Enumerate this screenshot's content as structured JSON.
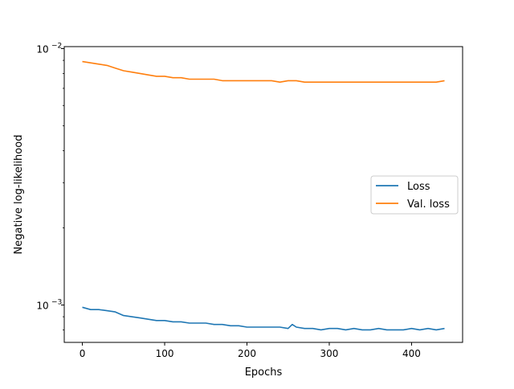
{
  "chart_data": {
    "type": "line",
    "title": "",
    "xlabel": "Epochs",
    "ylabel": "Negative log-likelihood",
    "xlim": [
      -22,
      462
    ],
    "ylim": [
      0.00072,
      0.0102
    ],
    "y_scale": "log",
    "grid": false,
    "legend_position": "center-right",
    "x_ticks": [
      {
        "value": 0,
        "label": "0"
      },
      {
        "value": 100,
        "label": "100"
      },
      {
        "value": 200,
        "label": "200"
      },
      {
        "value": 300,
        "label": "300"
      },
      {
        "value": 400,
        "label": "400"
      }
    ],
    "y_ticks": [
      {
        "value": 0.001,
        "base": "10",
        "exp": "−3"
      },
      {
        "value": 0.01,
        "base": "10",
        "exp": "−2"
      }
    ],
    "series": [
      {
        "name": "Loss",
        "color": "#1f77b4",
        "x": [
          0,
          10,
          20,
          30,
          40,
          50,
          60,
          70,
          80,
          90,
          100,
          110,
          120,
          130,
          140,
          150,
          160,
          170,
          180,
          190,
          200,
          210,
          220,
          230,
          240,
          250,
          255,
          260,
          270,
          280,
          290,
          300,
          310,
          320,
          330,
          340,
          350,
          360,
          370,
          380,
          390,
          400,
          410,
          420,
          430,
          440
        ],
        "y": [
          0.00098,
          0.00096,
          0.00096,
          0.00095,
          0.00094,
          0.00091,
          0.0009,
          0.00089,
          0.00088,
          0.00087,
          0.00087,
          0.00086,
          0.00086,
          0.00085,
          0.00085,
          0.00085,
          0.00084,
          0.00084,
          0.00083,
          0.00083,
          0.00082,
          0.00082,
          0.00082,
          0.00082,
          0.00082,
          0.00081,
          0.00084,
          0.00082,
          0.00081,
          0.00081,
          0.0008,
          0.00081,
          0.00081,
          0.0008,
          0.00081,
          0.0008,
          0.0008,
          0.00081,
          0.0008,
          0.0008,
          0.0008,
          0.00081,
          0.0008,
          0.00081,
          0.0008,
          0.00081
        ]
      },
      {
        "name": "Val. loss",
        "color": "#ff7f0e",
        "x": [
          0,
          10,
          20,
          30,
          40,
          50,
          60,
          70,
          80,
          90,
          100,
          110,
          120,
          130,
          140,
          150,
          160,
          170,
          180,
          190,
          200,
          210,
          220,
          230,
          240,
          250,
          260,
          270,
          280,
          290,
          300,
          310,
          320,
          330,
          340,
          350,
          360,
          370,
          380,
          390,
          400,
          410,
          420,
          430,
          440
        ],
        "y": [
          0.0089,
          0.0088,
          0.0087,
          0.0086,
          0.0084,
          0.0082,
          0.0081,
          0.008,
          0.0079,
          0.0078,
          0.0078,
          0.0077,
          0.0077,
          0.0076,
          0.0076,
          0.0076,
          0.0076,
          0.0075,
          0.0075,
          0.0075,
          0.0075,
          0.0075,
          0.0075,
          0.0075,
          0.0074,
          0.0075,
          0.0075,
          0.0074,
          0.0074,
          0.0074,
          0.0074,
          0.0074,
          0.0074,
          0.0074,
          0.0074,
          0.0074,
          0.0074,
          0.0074,
          0.0074,
          0.0074,
          0.0074,
          0.0074,
          0.0074,
          0.0074,
          0.0075
        ]
      }
    ]
  }
}
